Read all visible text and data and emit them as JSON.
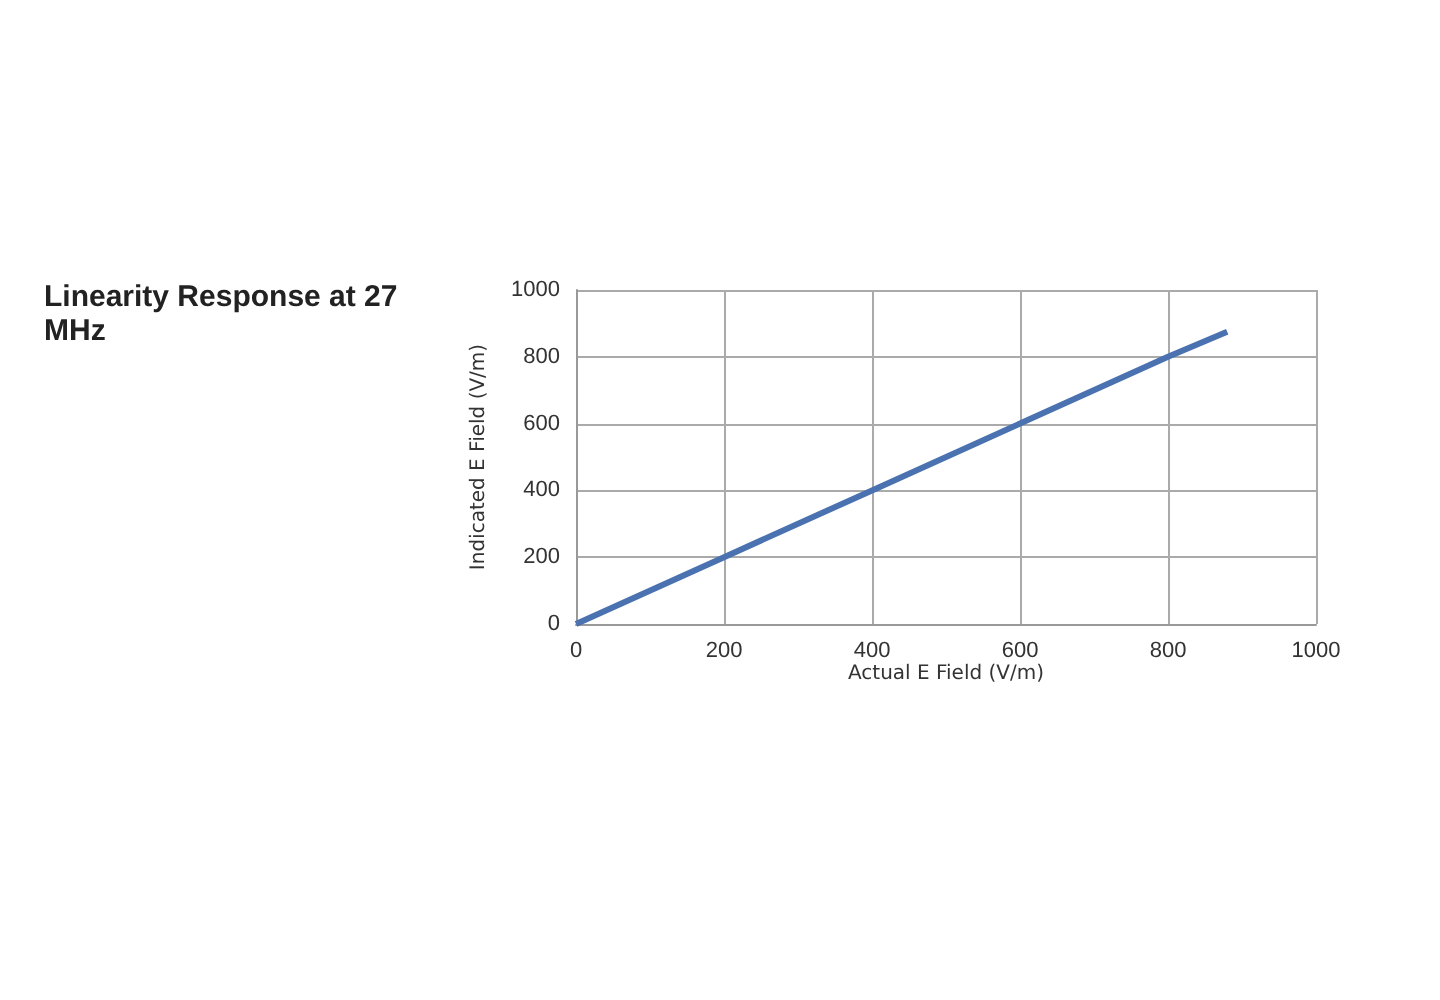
{
  "chart_data": {
    "type": "line",
    "title": "Linearity Response at 27 MHz",
    "xlabel": "Actual E Field (V/m)",
    "ylabel": "Indicated E Field (V/m)",
    "x": [
      0,
      200,
      400,
      600,
      800,
      880
    ],
    "series": [
      {
        "color": "#4a72b0",
        "values": [
          0,
          200,
          400,
          600,
          800,
          875
        ]
      }
    ],
    "xlim": [
      0,
      1000
    ],
    "xticks": [
      0,
      200,
      400,
      600,
      800,
      1000
    ],
    "ylim": [
      0,
      1000
    ],
    "yticks": [
      0,
      200,
      400,
      600,
      800,
      1000
    ],
    "grid": true,
    "marker": "none",
    "line_style": "solid"
  }
}
